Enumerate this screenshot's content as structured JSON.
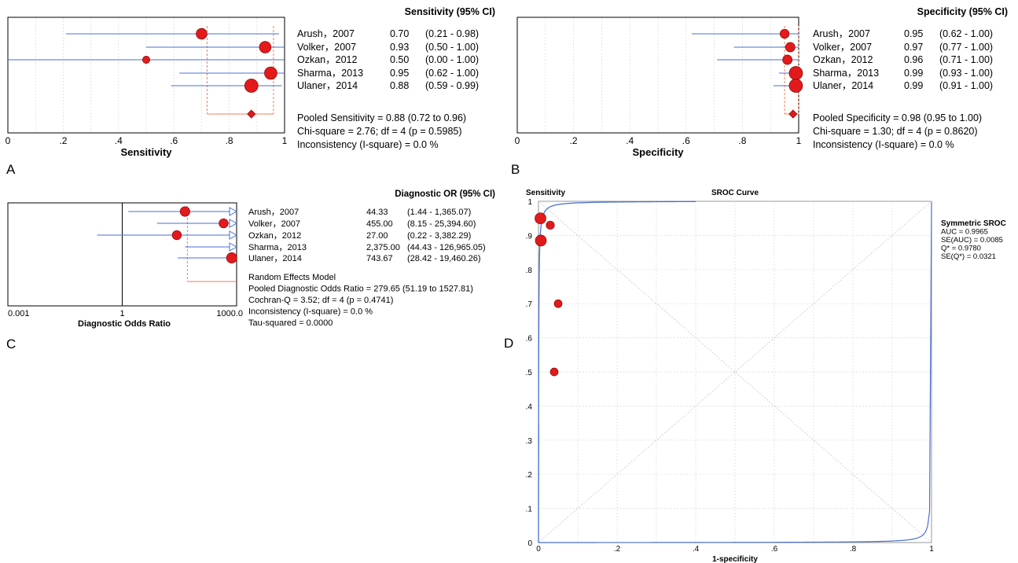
{
  "colors": {
    "marker": "#e31a1c",
    "marker_stroke": "#8b0000",
    "ci_line": "#4a6fd6",
    "pooled_line": "#f07f5a",
    "grid": "#d9d9d9",
    "sroc_curve": "#4a6fd6",
    "axis": "#000000"
  },
  "chart_data": [
    {
      "panel": "A",
      "type": "forest",
      "column_header": "Sensitivity (95% CI)",
      "xlabel": "Sensitivity",
      "xlim": [
        0,
        1
      ],
      "ticks": [
        "0",
        ".2",
        ".4",
        ".6",
        ".8",
        "1"
      ],
      "studies": [
        {
          "label": "Arush，2007",
          "est": 0.7,
          "lo": 0.21,
          "hi": 0.98,
          "est_text": "0.70",
          "ci_text": "(0.21 - 0.98)",
          "weight": 0.7
        },
        {
          "label": "Volker，2007",
          "est": 0.93,
          "lo": 0.5,
          "hi": 1.0,
          "est_text": "0.93",
          "ci_text": "(0.50 - 1.00)",
          "weight": 0.8
        },
        {
          "label": "Ozkan，2012",
          "est": 0.5,
          "lo": 0.0,
          "hi": 1.0,
          "est_text": "0.50",
          "ci_text": "(0.00 - 1.00)",
          "weight": 0.3
        },
        {
          "label": "Sharma，2013",
          "est": 0.95,
          "lo": 0.62,
          "hi": 1.0,
          "est_text": "0.95",
          "ci_text": "(0.62 - 1.00)",
          "weight": 0.9
        },
        {
          "label": "Ulaner，2014",
          "est": 0.88,
          "lo": 0.59,
          "hi": 0.99,
          "est_text": "0.88",
          "ci_text": "(0.59 - 0.99)",
          "weight": 1.0
        }
      ],
      "pooled": {
        "est": 0.88,
        "lo": 0.72,
        "hi": 0.96
      },
      "stats": [
        "Pooled Sensitivity = 0.88 (0.72 to 0.96)",
        "Chi-square = 2.76; df =  4 (p = 0.5985)",
        "Inconsistency (I-square) = 0.0 %"
      ]
    },
    {
      "panel": "B",
      "type": "forest",
      "column_header": "Specificity (95% CI)",
      "xlabel": "Specificity",
      "xlim": [
        0,
        1
      ],
      "ticks": [
        "0",
        ".2",
        ".4",
        ".6",
        ".8",
        "1"
      ],
      "studies": [
        {
          "label": "Arush，2007",
          "est": 0.95,
          "lo": 0.62,
          "hi": 1.0,
          "est_text": "0.95",
          "ci_text": "(0.62 - 1.00)",
          "weight": 0.5
        },
        {
          "label": "Volker，2007",
          "est": 0.97,
          "lo": 0.77,
          "hi": 1.0,
          "est_text": "0.97",
          "ci_text": "(0.77 - 1.00)",
          "weight": 0.55
        },
        {
          "label": "Ozkan，2012",
          "est": 0.96,
          "lo": 0.71,
          "hi": 1.0,
          "est_text": "0.96",
          "ci_text": "(0.71 - 1.00)",
          "weight": 0.55
        },
        {
          "label": "Sharma，2013",
          "est": 0.99,
          "lo": 0.93,
          "hi": 1.0,
          "est_text": "0.99",
          "ci_text": "(0.93 - 1.00)",
          "weight": 1.0
        },
        {
          "label": "Ulaner，2014",
          "est": 0.99,
          "lo": 0.91,
          "hi": 1.0,
          "est_text": "0.99",
          "ci_text": "(0.91 - 1.00)",
          "weight": 1.0
        }
      ],
      "pooled": {
        "est": 0.98,
        "lo": 0.95,
        "hi": 1.0
      },
      "stats": [
        "Pooled Specificity = 0.98 (0.95 to 1.00)",
        "Chi-square = 1.30; df =  4 (p = 0.8620)",
        "Inconsistency (I-square) = 0.0 %"
      ]
    },
    {
      "panel": "C",
      "type": "forest",
      "scale": "log",
      "column_header": "Diagnostic OR (95% CI)",
      "xlabel": "Diagnostic Odds Ratio",
      "xlim": [
        0.001,
        1000
      ],
      "ticks": [
        "0.001",
        "1",
        "1000.0"
      ],
      "studies": [
        {
          "label": "Arush，2007",
          "est": 44.33,
          "lo": 1.44,
          "hi": 1365.07,
          "est_text": "44.33",
          "ci_text": "(1.44 - 1,365.07)",
          "weight": 0.8
        },
        {
          "label": "Volker，2007",
          "est": 455.0,
          "lo": 8.15,
          "hi": 25394.6,
          "est_text": "455.00",
          "ci_text": "(8.15 - 25,394.60)",
          "weight": 0.7
        },
        {
          "label": "Ozkan，2012",
          "est": 27.0,
          "lo": 0.22,
          "hi": 3382.29,
          "est_text": "27.00",
          "ci_text": "(0.22 - 3,382.29)",
          "weight": 0.7
        },
        {
          "label": "Sharma，2013",
          "est": 2375.0,
          "lo": 44.43,
          "hi": 126965.05,
          "est_text": "2,375.00",
          "ci_text": "(44.43 - 126,965.05)",
          "weight": 0.0
        },
        {
          "label": "Ulaner，2014",
          "est": 743.67,
          "lo": 28.42,
          "hi": 19460.26,
          "est_text": "743.67",
          "ci_text": "(28.42 - 19,460.26)",
          "weight": 0.9
        }
      ],
      "pooled": {
        "est": 279.65,
        "lo": 51.19,
        "hi": 1527.81
      },
      "stats": [
        "Random Effects Model",
        "Pooled Diagnostic Odds Ratio = 279.65 (51.19 to 1527.81)",
        "Cochran-Q = 3.52; df =  4 (p = 0.4741)",
        "Inconsistency (I-square) = 0.0 %",
        "Tau-squared = 0.0000"
      ]
    },
    {
      "panel": "D",
      "type": "scatter",
      "title": "SROC Curve",
      "ylabel": "Sensitivity",
      "xlabel": "1-specificity",
      "xlim": [
        0,
        1
      ],
      "ylim": [
        0,
        1
      ],
      "xticks": [
        "0",
        ".2",
        ".4",
        ".6",
        ".8",
        "1"
      ],
      "yticks": [
        "0",
        ".1",
        ".2",
        ".3",
        ".4",
        ".5",
        ".6",
        ".7",
        ".8",
        ".9",
        "1"
      ],
      "points": [
        {
          "x": 0.005,
          "y": 0.95,
          "size": 1.0
        },
        {
          "x": 0.006,
          "y": 0.885,
          "size": 1.0
        },
        {
          "x": 0.03,
          "y": 0.93,
          "size": 0.6
        },
        {
          "x": 0.05,
          "y": 0.7,
          "size": 0.55
        },
        {
          "x": 0.04,
          "y": 0.5,
          "size": 0.55
        }
      ],
      "curve_auc": 0.9965,
      "legend": [
        "Symmetric SROC",
        "AUC = 0.9965",
        "SE(AUC) = 0.0085",
        "Q* = 0.9780",
        "SE(Q*) = 0.0321"
      ]
    }
  ]
}
